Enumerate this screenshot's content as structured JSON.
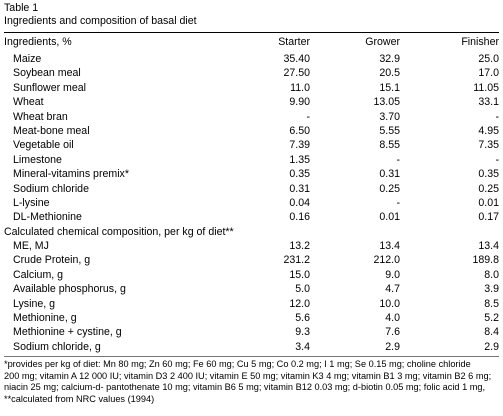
{
  "table": {
    "label": "Table 1",
    "title": "Ingredients and composition of basal diet",
    "headers": [
      "Ingredients, %",
      "Starter",
      "Grower",
      "Finisher"
    ],
    "ingredients": [
      {
        "name": "Maize",
        "starter": "35.40",
        "grower": "32.9",
        "finisher": "25.0"
      },
      {
        "name": "Soybean meal",
        "starter": "27.50",
        "grower": "20.5",
        "finisher": "17.0"
      },
      {
        "name": "Sunflower meal",
        "starter": "11.0",
        "grower": "15.1",
        "finisher": "11.05"
      },
      {
        "name": "Wheat",
        "starter": "9.90",
        "grower": "13.05",
        "finisher": "33.1"
      },
      {
        "name": "Wheat bran",
        "starter": "-",
        "grower": "3.70",
        "finisher": "-"
      },
      {
        "name": "Meat-bone meal",
        "starter": "6.50",
        "grower": "5.55",
        "finisher": "4.95"
      },
      {
        "name": "Vegetable oil",
        "starter": "7.39",
        "grower": "8.55",
        "finisher": "7.35"
      },
      {
        "name": "Limestone",
        "starter": "1.35",
        "grower": "-",
        "finisher": "-"
      },
      {
        "name": "Mineral-vitamins premix*",
        "starter": "0.35",
        "grower": "0.31",
        "finisher": "0.35"
      },
      {
        "name": "Sodium chloride",
        "starter": "0.31",
        "grower": "0.25",
        "finisher": "0.25"
      },
      {
        "name": "L-lysine",
        "starter": "0.04",
        "grower": "-",
        "finisher": "0.01"
      },
      {
        "name": "DL-Methionine",
        "starter": "0.16",
        "grower": "0.01",
        "finisher": "0.17"
      }
    ],
    "section_label": "Calculated chemical composition, per kg of diet**",
    "composition": [
      {
        "name": "ME, MJ",
        "starter": "13.2",
        "grower": "13.4",
        "finisher": "13.4"
      },
      {
        "name": "Crude Protein, g",
        "starter": "231.2",
        "grower": "212.0",
        "finisher": "189.8"
      },
      {
        "name": "Calcium, g",
        "starter": "15.0",
        "grower": "9.0",
        "finisher": "8.0"
      },
      {
        "name": "Available phosphorus, g",
        "starter": "5.0",
        "grower": "4.7",
        "finisher": "3.9"
      },
      {
        "name": "Lysine, g",
        "starter": "12.0",
        "grower": "10.0",
        "finisher": "8.5"
      },
      {
        "name": "Methionine, g",
        "starter": "5.6",
        "grower": "4.0",
        "finisher": "5.2"
      },
      {
        "name": "Methionine + cystine, g",
        "starter": "9.3",
        "grower": "7.6",
        "finisher": "8.4"
      },
      {
        "name": "Sodium chloride, g",
        "starter": "3.4",
        "grower": "2.9",
        "finisher": "2.9"
      }
    ],
    "footnotes": {
      "line1": "*provides per kg of diet: Mn 80 mg; Zn 60 mg; Fe 60 mg; Cu 5 mg; Co 0.2 mg; I 1 mg; Se 0.15 mg; choline chloride",
      "line2": "200 mg; vitamin A 12 000 IU; vitamin D3 2 400 IU; vitamin E 50 mg; vitamin K3 4 mg; vitamin B1 3 mg; vitamin B2 6 mg;",
      "line3": "niacin 25 mg; calcium-d- pantothenate 10 mg; vitamin B6 5 mg; vitamin B12 0.03 mg; d-biotin 0.05 mg; folic acid 1 mg,",
      "line4": "**calculated from NRC values (1994)"
    }
  }
}
